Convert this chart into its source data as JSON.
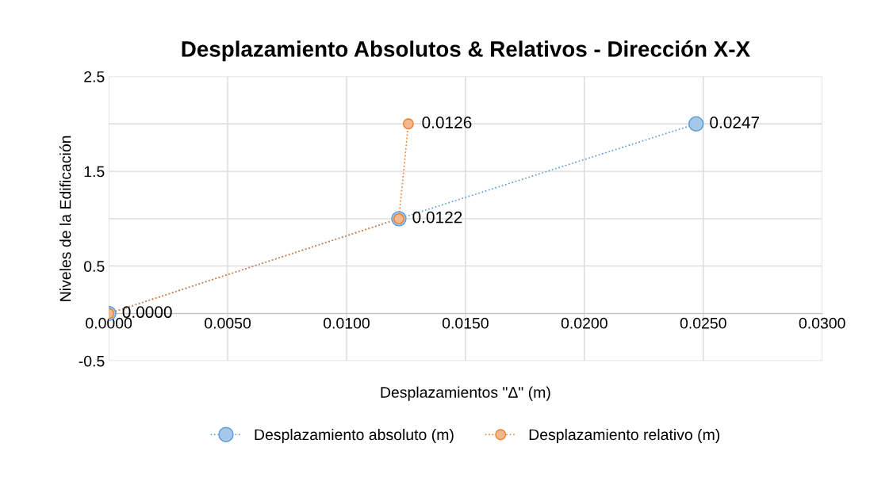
{
  "chart_data": {
    "type": "line",
    "title": "Desplazamiento Absolutos & Relativos - Dirección X-X",
    "xlabel": "Desplazamientos \"Δ\" (m)",
    "ylabel": "Niveles de la Edificación",
    "series": [
      {
        "name": "Desplazamiento absoluto (m)",
        "color": "#5b9bd5",
        "x": [
          0.0,
          0.0122,
          0.0247
        ],
        "values": [
          0,
          1,
          2
        ]
      },
      {
        "name": "Desplazamiento relativo (m)",
        "color": "#ed7d31",
        "x": [
          0.0,
          0.0122,
          0.0126
        ],
        "values": [
          0,
          1,
          2
        ]
      }
    ],
    "annotations": [
      {
        "text": "0.0000",
        "x": 0.0,
        "y": 0
      },
      {
        "text": "0.0122",
        "x": 0.0122,
        "y": 1
      },
      {
        "text": "0.0126",
        "x": 0.0126,
        "y": 2
      },
      {
        "text": "0.0247",
        "x": 0.0247,
        "y": 2
      }
    ],
    "xlim": [
      0,
      0.03
    ],
    "xticks": [
      {
        "value": 0,
        "label": "0.0000"
      },
      {
        "value": 0.005,
        "label": "0.0050"
      },
      {
        "value": 0.01,
        "label": "0.0100"
      },
      {
        "value": 0.015,
        "label": "0.0150"
      },
      {
        "value": 0.02,
        "label": "0.0200"
      },
      {
        "value": 0.025,
        "label": "0.0250"
      },
      {
        "value": 0.03,
        "label": "0.0300"
      }
    ],
    "ylim": [
      -0.5,
      2.5
    ],
    "yticks": [
      -0.5,
      {
        "value": 0,
        "label": null
      },
      0.5,
      {
        "value": 1,
        "label": null
      },
      1.5,
      {
        "value": 2,
        "label": null
      },
      2.5
    ],
    "grid": true,
    "legend": "bottom",
    "marker": "circle",
    "line_style": "dotted"
  }
}
